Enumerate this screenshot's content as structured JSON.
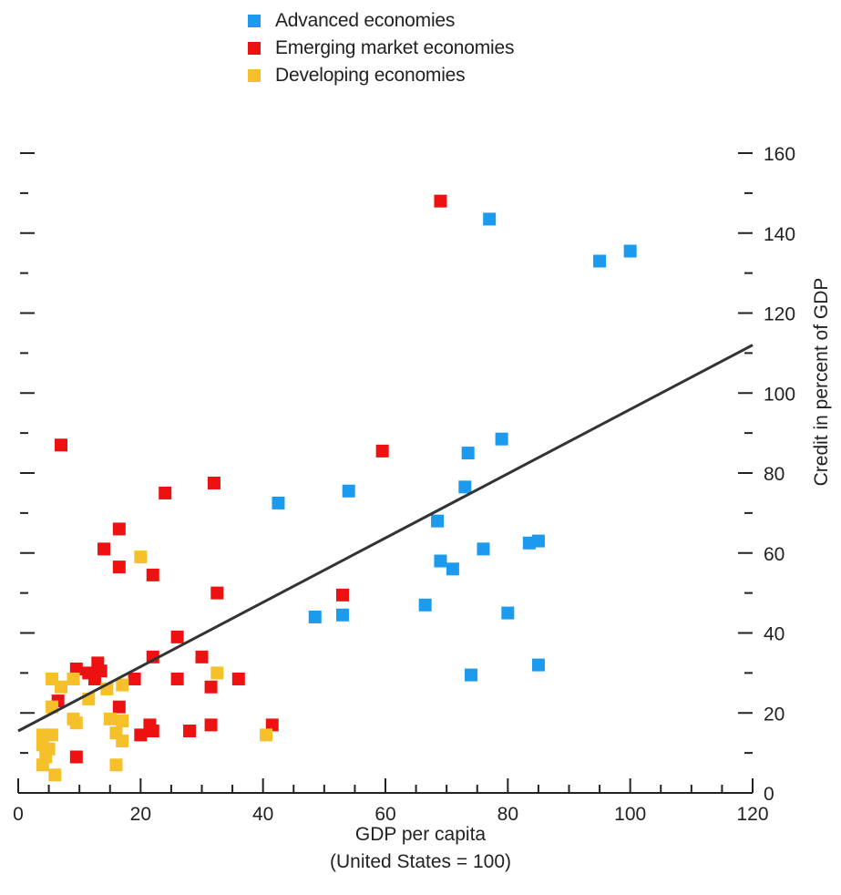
{
  "chart_data": {
    "type": "scatter",
    "xlabel": "GDP per capita",
    "xlabel_sub": "(United States = 100)",
    "ylabel": "Credit in percent of GDP",
    "xlim": [
      0,
      120
    ],
    "ylim": [
      0,
      160
    ],
    "x_ticks": [
      0,
      20,
      40,
      60,
      80,
      100,
      120
    ],
    "y_ticks": [
      0,
      20,
      40,
      60,
      80,
      100,
      120,
      140,
      160
    ],
    "grid": false,
    "legend_position": "top",
    "trendline": {
      "x": [
        0,
        120
      ],
      "y": [
        15.5,
        112
      ]
    },
    "series": [
      {
        "name": "Advanced economies",
        "color": "#1c9aee",
        "points": [
          [
            77,
            143.5
          ],
          [
            95,
            133
          ],
          [
            100,
            135.5
          ],
          [
            42.5,
            72.5
          ],
          [
            54,
            75.5
          ],
          [
            73.5,
            85
          ],
          [
            79,
            88.5
          ],
          [
            73,
            76.5
          ],
          [
            68.5,
            68
          ],
          [
            69,
            58
          ],
          [
            71,
            56
          ],
          [
            76,
            61
          ],
          [
            83.5,
            62.5
          ],
          [
            85,
            63
          ],
          [
            66.5,
            47
          ],
          [
            48.5,
            44
          ],
          [
            53,
            44.5
          ],
          [
            80,
            45
          ],
          [
            74,
            29.5
          ],
          [
            85,
            32
          ]
        ]
      },
      {
        "name": "Emerging market economies",
        "color": "#ee1111",
        "points": [
          [
            69,
            148
          ],
          [
            7,
            87
          ],
          [
            59.5,
            85.5
          ],
          [
            32,
            77.5
          ],
          [
            24,
            75
          ],
          [
            16.5,
            66
          ],
          [
            14,
            61
          ],
          [
            16.5,
            56.5
          ],
          [
            22,
            54.5
          ],
          [
            32.5,
            50
          ],
          [
            53,
            49.5
          ],
          [
            26,
            39
          ],
          [
            22,
            34
          ],
          [
            30,
            34
          ],
          [
            13,
            32.5
          ],
          [
            9.5,
            31
          ],
          [
            11.5,
            30
          ],
          [
            13.5,
            30.5
          ],
          [
            12.5,
            28.5
          ],
          [
            19,
            28.5
          ],
          [
            26,
            28.5
          ],
          [
            36,
            28.5
          ],
          [
            31.5,
            26.5
          ],
          [
            6.5,
            23
          ],
          [
            16.5,
            21.5
          ],
          [
            21.5,
            17
          ],
          [
            31.5,
            17
          ],
          [
            41.5,
            17
          ],
          [
            20,
            14.5
          ],
          [
            22,
            15.5
          ],
          [
            28,
            15.5
          ],
          [
            9.5,
            9
          ]
        ]
      },
      {
        "name": "Developing economies",
        "color": "#f6c02a",
        "points": [
          [
            20,
            59
          ],
          [
            32.5,
            30
          ],
          [
            5.5,
            28.5
          ],
          [
            9,
            28.5
          ],
          [
            7,
            26.5
          ],
          [
            17,
            27
          ],
          [
            14.5,
            26
          ],
          [
            11.5,
            23.5
          ],
          [
            5.5,
            21.5
          ],
          [
            15,
            18.5
          ],
          [
            17,
            18
          ],
          [
            9,
            18.5
          ],
          [
            9.5,
            17.5
          ],
          [
            16,
            15
          ],
          [
            17,
            13
          ],
          [
            40.5,
            14.5
          ],
          [
            4,
            14.5
          ],
          [
            5.5,
            14.5
          ],
          [
            4,
            12
          ],
          [
            5,
            11
          ],
          [
            4.5,
            9
          ],
          [
            4,
            7
          ],
          [
            16,
            7
          ],
          [
            6,
            4.5
          ]
        ]
      }
    ]
  }
}
